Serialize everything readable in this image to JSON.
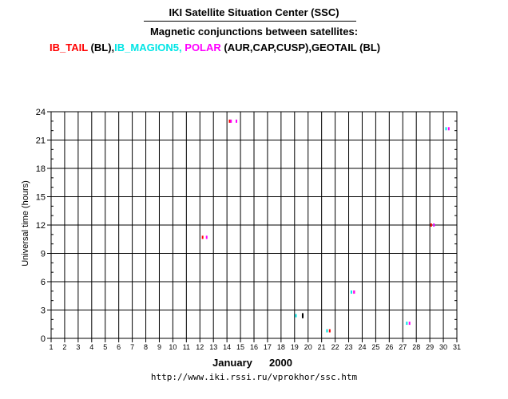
{
  "header": {
    "title": "IKI Satellite Situation Center (SSC)",
    "subtitle": "Magnetic conjunctions between satellites:"
  },
  "legend": {
    "parts": [
      {
        "text": "IB_TAIL",
        "color": "#ff0000"
      },
      {
        "text": " (BL),",
        "color": "#000000"
      },
      {
        "text": "IB_MAGION5,",
        "color": "#00e5e5"
      },
      {
        "text": " POLAR",
        "color": "#ff00ff"
      },
      {
        "text": " (AUR,CAP,CUSP),GEOTAIL (BL)",
        "color": "#000000"
      }
    ]
  },
  "footer": {
    "month": "January",
    "year": "2000",
    "url": "http://www.iki.rssi.ru/vprokhor/ssc.htm"
  },
  "colors": {
    "ib_tail": "#ff0000",
    "ib_magion5": "#00e5e5",
    "polar": "#ff00ff",
    "geotail": "#000000"
  },
  "chart_data": {
    "type": "scatter",
    "ylabel": "Universal time (hours)",
    "xlim": [
      1,
      31
    ],
    "ylim": [
      0,
      24
    ],
    "x_ticks": [
      "1",
      "2",
      "3",
      "4",
      "5",
      "6",
      "7",
      "8",
      "9",
      "10",
      "11",
      "12",
      "13",
      "14",
      "15",
      "16",
      "17",
      "18",
      "19",
      "20",
      "21",
      "22",
      "23",
      "24",
      "25",
      "26",
      "27",
      "28",
      "29",
      "30",
      "31"
    ],
    "y_ticks": [
      0,
      3,
      6,
      9,
      12,
      15,
      18,
      21,
      24
    ],
    "grid": true,
    "series": [
      {
        "name": "IB_TAIL",
        "color": "#ff0000",
        "points": [
          [
            12.2,
            10.7
          ],
          [
            14.2,
            23.0
          ],
          [
            21.6,
            0.8
          ],
          [
            23.4,
            4.9
          ],
          [
            29.1,
            12.0
          ]
        ]
      },
      {
        "name": "IB_MAGION5",
        "color": "#00e5e5",
        "points": [
          [
            19.1,
            2.4
          ],
          [
            21.4,
            0.8
          ],
          [
            23.2,
            4.9
          ],
          [
            27.3,
            1.6
          ],
          [
            29.3,
            12.0
          ],
          [
            30.2,
            22.2
          ]
        ]
      },
      {
        "name": "POLAR",
        "color": "#ff00ff",
        "points": [
          [
            12.5,
            10.7
          ],
          [
            14.3,
            23.0
          ],
          [
            14.7,
            23.0
          ],
          [
            23.4,
            4.9
          ],
          [
            27.5,
            1.6
          ],
          [
            29.3,
            12.0
          ],
          [
            30.4,
            22.2
          ]
        ]
      },
      {
        "name": "GEOTAIL",
        "color": "#000000",
        "points": [
          [
            19.6,
            2.5
          ],
          [
            19.6,
            2.3
          ]
        ]
      }
    ]
  }
}
